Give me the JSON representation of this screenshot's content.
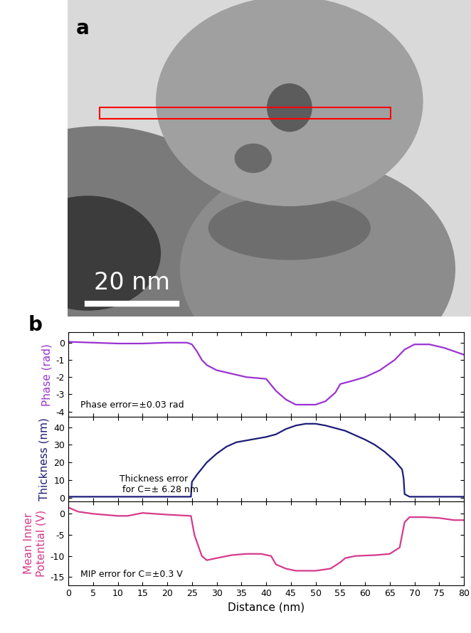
{
  "image_panel": {
    "panel_label": "a",
    "scale_bar": "20 nm"
  },
  "panel_label": "b",
  "chart_data": [
    {
      "type": "line",
      "y_label": "Phase (rad)",
      "annotation": "Phase error=±0.03 rad",
      "color": "#9a33d1",
      "x": [
        0,
        5,
        10,
        15,
        20,
        24,
        25,
        26,
        27,
        28,
        30,
        33,
        36,
        38,
        40,
        42,
        44,
        46,
        48,
        50,
        52,
        54,
        55,
        57,
        60,
        63,
        66,
        68,
        70,
        73,
        76,
        78,
        80
      ],
      "values": [
        0.05,
        0,
        -0.05,
        -0.05,
        0,
        0,
        -0.1,
        -0.5,
        -1.0,
        -1.3,
        -1.6,
        -1.8,
        -2.0,
        -2.05,
        -2.1,
        -2.8,
        -3.3,
        -3.6,
        -3.6,
        -3.6,
        -3.4,
        -2.9,
        -2.4,
        -2.25,
        -2.0,
        -1.6,
        -1.0,
        -0.4,
        -0.1,
        -0.1,
        -0.3,
        -0.5,
        -0.7
      ],
      "xlim": [
        0,
        80
      ],
      "xticks": [
        0,
        5,
        10,
        15,
        20,
        25,
        30,
        35,
        40,
        45,
        50,
        55,
        60,
        65,
        70,
        75,
        80
      ],
      "ylim": [
        -4.3,
        0.6
      ],
      "yticks": [
        -4,
        -3,
        -2,
        -1,
        0
      ],
      "tick_labels": "y"
    },
    {
      "type": "line",
      "y_label": "Thickness (nm)",
      "annotation": "Thickness error\n for C=± 6.28 nm",
      "color": "#1c1c78",
      "x": [
        0,
        10,
        20,
        24.8,
        25,
        26,
        28,
        30,
        32,
        34,
        36,
        38,
        40,
        42,
        44,
        46,
        48,
        50,
        52,
        54,
        56,
        58,
        60,
        62,
        64,
        66,
        67.5,
        67.8,
        68,
        69,
        75,
        80
      ],
      "values": [
        0.5,
        0.5,
        0.5,
        0.5,
        9,
        13,
        20,
        25,
        29,
        31.5,
        32.5,
        33.5,
        34.5,
        36,
        39,
        41,
        42,
        42,
        41,
        39.5,
        38,
        35.5,
        33,
        30,
        26,
        21,
        16,
        11,
        2,
        0.5,
        0.5,
        0.5
      ],
      "xlim": [
        0,
        80
      ],
      "xticks": [
        0,
        5,
        10,
        15,
        20,
        25,
        30,
        35,
        40,
        45,
        50,
        55,
        60,
        65,
        70,
        75,
        80
      ],
      "ylim": [
        -2,
        46
      ],
      "yticks": [
        0,
        10,
        20,
        30,
        40
      ],
      "tick_labels": "y"
    },
    {
      "type": "line",
      "y_label": "Mean Inner\nPotential (V)",
      "x_label": "Distance (nm)",
      "annotation": "MIP error for C=±0.3 V",
      "color": "#d63a8c",
      "x": [
        0,
        2,
        5,
        10,
        12,
        15,
        20,
        24.8,
        25.5,
        27,
        28,
        30,
        33,
        36,
        39,
        41,
        42,
        44,
        46,
        50,
        53,
        55,
        56,
        58,
        62,
        65,
        67,
        68,
        69,
        72,
        75,
        78,
        80
      ],
      "values": [
        1.5,
        0.5,
        0,
        -0.5,
        -0.5,
        0.2,
        -0.2,
        -0.5,
        -5,
        -10,
        -11,
        -10.5,
        -9.8,
        -9.5,
        -9.5,
        -10,
        -12,
        -13,
        -13.5,
        -13.5,
        -13,
        -11.5,
        -10.5,
        -10,
        -9.8,
        -9.5,
        -8,
        -2,
        -0.8,
        -0.8,
        -1,
        -1.5,
        -1.5
      ],
      "xlim": [
        0,
        80
      ],
      "xticks": [
        0,
        5,
        10,
        15,
        20,
        25,
        30,
        35,
        40,
        45,
        50,
        55,
        60,
        65,
        70,
        75,
        80
      ],
      "ylim": [
        -17,
        3
      ],
      "yticks": [
        -15,
        -10,
        -5,
        0
      ]
    }
  ]
}
